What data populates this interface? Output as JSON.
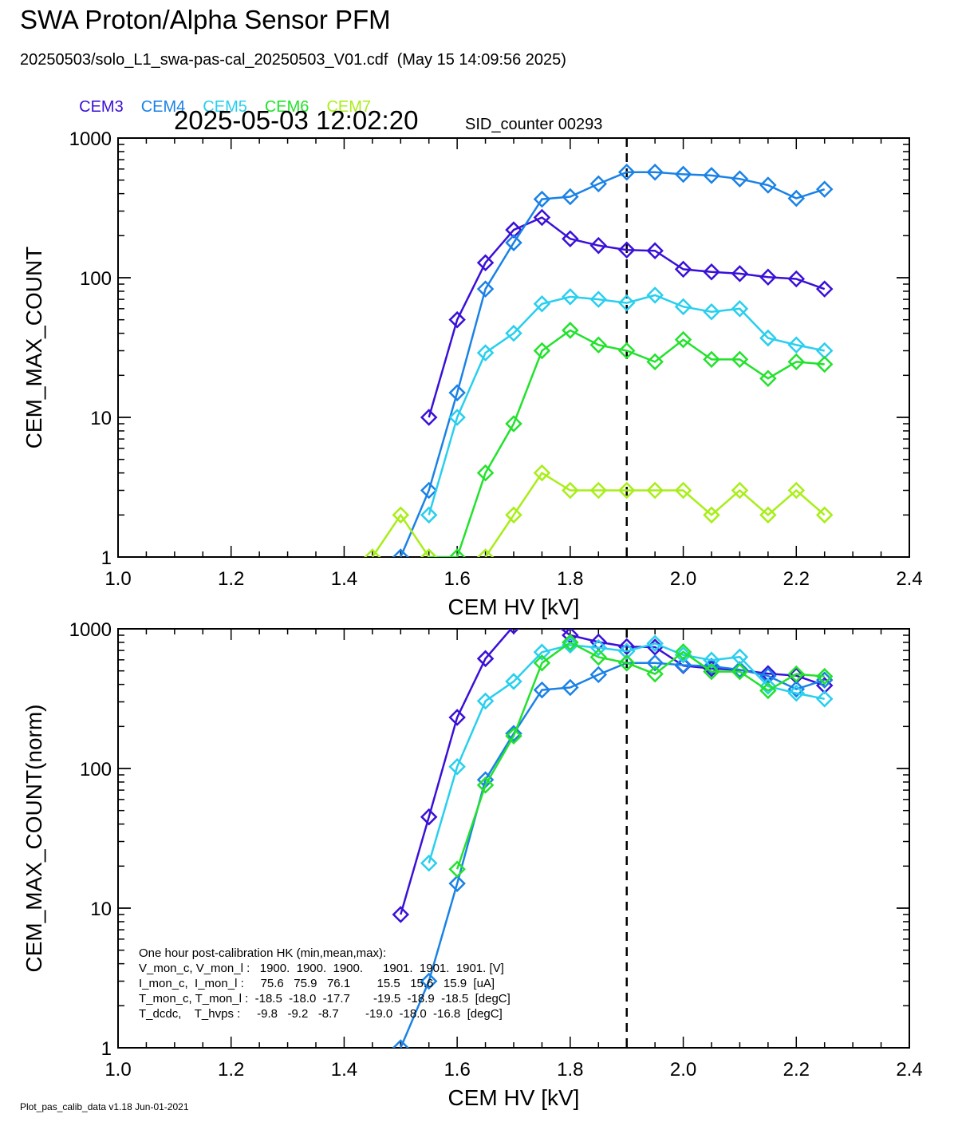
{
  "header": {
    "title": "SWA Proton/Alpha Sensor PFM",
    "subtitle": "20250503/solo_L1_swa-pas-cal_20250503_V01.cdf  (May 15 14:09:56 2025)",
    "timestamp": "2025-05-03 12:02:20",
    "sid_counter": "SID_counter 00293"
  },
  "legend": [
    {
      "name": "CEM3",
      "color": "#3a10d8"
    },
    {
      "name": "CEM4",
      "color": "#1a82e6"
    },
    {
      "name": "CEM5",
      "color": "#28cfee"
    },
    {
      "name": "CEM6",
      "color": "#22e22c"
    },
    {
      "name": "CEM7",
      "color": "#a8ee18"
    }
  ],
  "footer": "Plot_pas_calib_data v1.18 Jun-01-2021",
  "hk_box": [
    "One hour post-calibration HK (min,mean,max):",
    "V_mon_c, V_mon_l :   1900.  1900.  1900.      1901.  1901.  1901. [V]",
    "I_mon_c,  I_mon_l :     75.6   75.9   76.1        15.5   15.6   15.9  [uA]",
    "T_mon_c, T_mon_l :  -18.5  -18.0  -17.7       -19.5  -18.9  -18.5  [degC]",
    "T_dcdc,    T_hvps :     -9.8   -9.2   -8.7        -19.0  -18.0  -16.8  [degC]"
  ],
  "chart_data": [
    {
      "type": "line",
      "xlabel": "CEM HV [kV]",
      "ylabel": "CEM_MAX_COUNT",
      "xlim": [
        1.0,
        2.4
      ],
      "ylim": [
        1,
        1000
      ],
      "yscale": "log",
      "xticks": [
        "1.0",
        "1.2",
        "1.4",
        "1.6",
        "1.8",
        "2.0",
        "2.2",
        "2.4"
      ],
      "yticks": [
        "1",
        "10",
        "100",
        "1000"
      ],
      "vline": 1.9,
      "x": [
        1.45,
        1.5,
        1.55,
        1.6,
        1.65,
        1.7,
        1.75,
        1.8,
        1.85,
        1.9,
        1.95,
        2.0,
        2.05,
        2.1,
        2.15,
        2.2,
        2.25
      ],
      "series": [
        {
          "name": "CEM3",
          "color": "#3a10d8",
          "values": [
            null,
            null,
            10,
            50,
            128,
            220,
            270,
            190,
            170,
            158,
            156,
            115,
            110,
            107,
            101,
            98,
            83
          ]
        },
        {
          "name": "CEM4",
          "color": "#1a82e6",
          "values": [
            null,
            1,
            3,
            15,
            83,
            178,
            365,
            380,
            470,
            570,
            570,
            550,
            540,
            510,
            460,
            370,
            430
          ]
        },
        {
          "name": "CEM5",
          "color": "#28cfee",
          "values": [
            null,
            null,
            2,
            10,
            29,
            40,
            65,
            73,
            70,
            66,
            75,
            62,
            57,
            60,
            37,
            33,
            30
          ]
        },
        {
          "name": "CEM6",
          "color": "#22e22c",
          "values": [
            null,
            null,
            1,
            1,
            4,
            9,
            30,
            42,
            33,
            30,
            25,
            36,
            26,
            26,
            19,
            25,
            24
          ]
        },
        {
          "name": "CEM7",
          "color": "#a8ee18",
          "values": [
            1,
            2,
            1,
            null,
            1,
            2,
            4,
            3,
            3,
            3,
            3,
            3,
            2,
            3,
            2,
            3,
            2
          ]
        }
      ]
    },
    {
      "type": "line",
      "xlabel": "CEM HV [kV]",
      "ylabel": "CEM_MAX_COUNT(norm)",
      "xlim": [
        1.0,
        2.4
      ],
      "ylim": [
        1,
        1000
      ],
      "yscale": "log",
      "xticks": [
        "1.0",
        "1.2",
        "1.4",
        "1.6",
        "1.8",
        "2.0",
        "2.2",
        "2.4"
      ],
      "yticks": [
        "1",
        "10",
        "100",
        "1000"
      ],
      "vline": 1.9,
      "x": [
        1.45,
        1.5,
        1.55,
        1.6,
        1.65,
        1.7,
        1.75,
        1.8,
        1.85,
        1.9,
        1.95,
        2.0,
        2.05,
        2.1,
        2.15,
        2.2,
        2.25
      ],
      "series": [
        {
          "name": "CEM3",
          "color": "#3a10d8",
          "values": [
            null,
            9,
            45,
            232,
            612,
            1050,
            1260,
            900,
            805,
            745,
            740,
            545,
            520,
            507,
            478,
            462,
            393
          ]
        },
        {
          "name": "CEM4",
          "color": "#1a82e6",
          "values": [
            null,
            1,
            3,
            15,
            83,
            178,
            365,
            380,
            470,
            570,
            570,
            550,
            540,
            510,
            460,
            370,
            430
          ]
        },
        {
          "name": "CEM5",
          "color": "#28cfee",
          "values": [
            null,
            null,
            21,
            103,
            304,
            420,
            681,
            765,
            733,
            691,
            786,
            650,
            597,
            629,
            388,
            346,
            315
          ]
        },
        {
          "name": "CEM6",
          "color": "#22e22c",
          "values": [
            null,
            null,
            null,
            19,
            76,
            171,
            570,
            799,
            627,
            570,
            475,
            684,
            494,
            494,
            361,
            475,
            456
          ]
        }
      ]
    }
  ]
}
